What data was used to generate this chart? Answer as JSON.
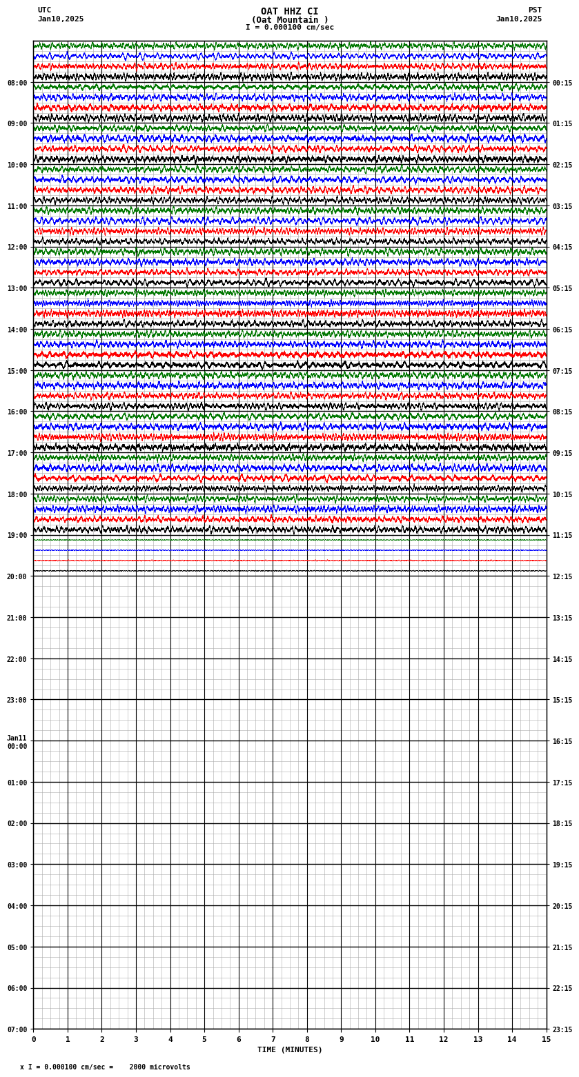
{
  "title_line1": "OAT HHZ CI",
  "title_line2": "(Oat Mountain )",
  "scale_text": "I = 0.000100 cm/sec",
  "bottom_text": "x I = 0.000100 cm/sec =    2000 microvolts",
  "utc_label": "UTC",
  "pst_label": "PST",
  "date_left": "Jan10,2025",
  "date_right": "Jan10,2025",
  "xlabel": "TIME (MINUTES)",
  "xmin": 0,
  "xmax": 15,
  "xticks": [
    0,
    1,
    2,
    3,
    4,
    5,
    6,
    7,
    8,
    9,
    10,
    11,
    12,
    13,
    14,
    15
  ],
  "utc_times_left": [
    "08:00",
    "09:00",
    "10:00",
    "11:00",
    "12:00",
    "13:00",
    "14:00",
    "15:00",
    "16:00",
    "17:00",
    "18:00",
    "19:00",
    "20:00",
    "21:00",
    "22:00",
    "23:00",
    "Jan11\n00:00",
    "01:00",
    "02:00",
    "03:00",
    "04:00",
    "05:00",
    "06:00",
    "07:00"
  ],
  "pst_times_right": [
    "00:15",
    "01:15",
    "02:15",
    "03:15",
    "04:15",
    "05:15",
    "06:15",
    "07:15",
    "08:15",
    "09:15",
    "10:15",
    "11:15",
    "12:15",
    "13:15",
    "14:15",
    "15:15",
    "16:15",
    "17:15",
    "18:15",
    "19:15",
    "20:15",
    "21:15",
    "22:15",
    "23:15"
  ],
  "num_rows": 24,
  "active_rows": 13,
  "sub_traces_per_row": 4,
  "signal_colors": [
    "#000000",
    "#ff0000",
    "#0000ff",
    "#007700"
  ],
  "bg_color": "#ffffff",
  "grid_color": "#aaaaaa",
  "seed": 42,
  "num_points": 8000,
  "last_row_low_amp": true
}
